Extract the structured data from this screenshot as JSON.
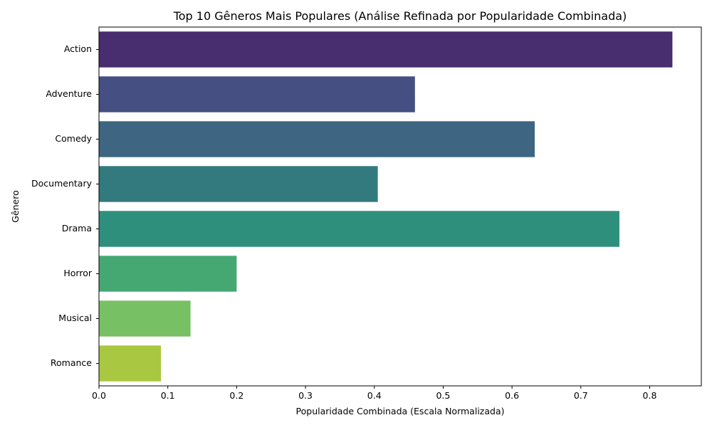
{
  "chart_data": {
    "type": "bar",
    "orientation": "horizontal",
    "title": "Top 10 Gêneros Mais Populares (Análise Refinada por Popularidade Combinada)",
    "xlabel": "Popularidade Combinada (Escala Normalizada)",
    "ylabel": "Gênero",
    "categories": [
      "Action",
      "Adventure",
      "Comedy",
      "Documentary",
      "Drama",
      "Horror",
      "Musical",
      "Romance"
    ],
    "values": [
      0.833,
      0.459,
      0.633,
      0.405,
      0.756,
      0.2,
      0.133,
      0.09
    ],
    "colors": [
      "#482D6F",
      "#464F82",
      "#3E6682",
      "#327A7E",
      "#2F8F7D",
      "#45A872",
      "#77C064",
      "#A9C741"
    ],
    "xlim": [
      0,
      0.875
    ],
    "xticks": [
      0.0,
      0.1,
      0.2,
      0.3,
      0.4,
      0.5,
      0.6,
      0.7,
      0.8
    ],
    "xtick_labels": [
      "0.0",
      "0.1",
      "0.2",
      "0.3",
      "0.4",
      "0.5",
      "0.6",
      "0.7",
      "0.8"
    ],
    "grid": false,
    "legend": "none"
  }
}
